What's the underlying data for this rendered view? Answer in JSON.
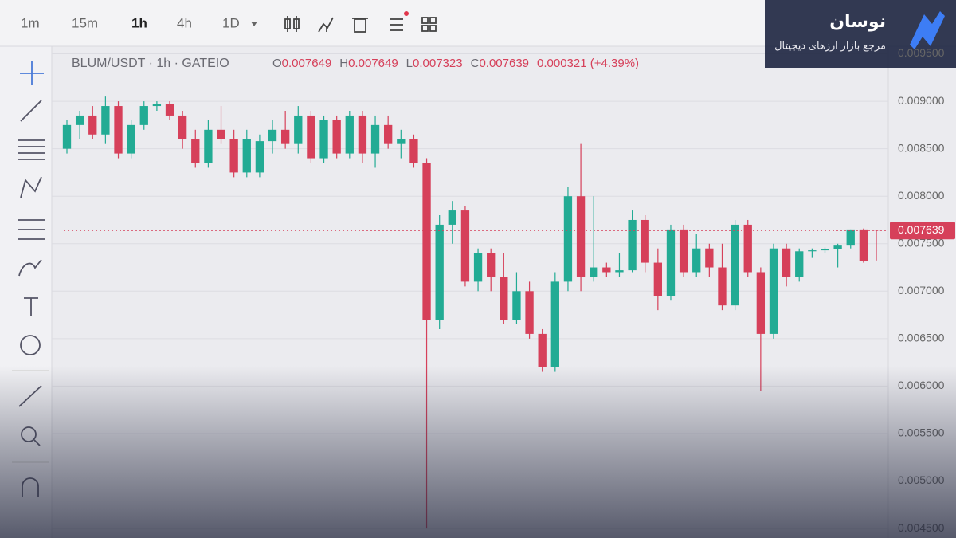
{
  "toolbar": {
    "intervals": [
      "1m",
      "15m",
      "1h",
      "4h",
      "1D"
    ]
  },
  "header": {
    "symbol": "BLUM/USDT · 1h · GATEIO",
    "ohlc": [
      {
        "label": "O",
        "value": "0.007649"
      },
      {
        "label": "H",
        "value": "0.007649"
      },
      {
        "label": "L",
        "value": "0.007323"
      },
      {
        "label": "C",
        "value": "0.007639"
      }
    ],
    "change": "0.000321 (+4.39%)"
  },
  "logo": {
    "name": "نوسان",
    "tagline": "مرجع بازار ارزهای دیجیتال"
  },
  "chart_data": {
    "type": "candlestick",
    "open": [
      0.0085,
      0.00875,
      0.00885,
      0.00865,
      0.00895,
      0.00845,
      0.00875,
      0.00895,
      0.00897,
      0.00885,
      0.0086,
      0.00835,
      0.0087,
      0.0086,
      0.00825,
      0.00825,
      0.00858,
      0.0087,
      0.00855,
      0.00885,
      0.0084,
      0.0088,
      0.00845,
      0.00885,
      0.00845,
      0.00875,
      0.00855,
      0.0086,
      0.00835,
      0.0067,
      0.0077,
      0.00785,
      0.0071,
      0.0074,
      0.00715,
      0.0067,
      0.007,
      0.00655,
      0.0062,
      0.0071,
      0.008,
      0.00715,
      0.00725,
      0.0072,
      0.00722,
      0.00775,
      0.0073,
      0.00695,
      0.00765,
      0.0072,
      0.00745,
      0.00725,
      0.00685,
      0.0077,
      0.0072,
      0.00655,
      0.00745,
      0.00715,
      0.00742,
      0.00743,
      0.00744,
      0.00748,
      0.00765,
      0.007649
    ],
    "high": [
      0.0088,
      0.0089,
      0.00895,
      0.00905,
      0.009,
      0.0088,
      0.009,
      0.009,
      0.009,
      0.0089,
      0.0087,
      0.0088,
      0.00895,
      0.0087,
      0.0087,
      0.00865,
      0.0088,
      0.0089,
      0.00895,
      0.0089,
      0.00885,
      0.00885,
      0.0089,
      0.0089,
      0.00885,
      0.00885,
      0.0087,
      0.00865,
      0.0084,
      0.0078,
      0.00795,
      0.0079,
      0.00745,
      0.00745,
      0.0074,
      0.0072,
      0.0071,
      0.0066,
      0.0072,
      0.0081,
      0.00855,
      0.008,
      0.0073,
      0.0074,
      0.00785,
      0.0078,
      0.00745,
      0.0077,
      0.0077,
      0.0076,
      0.0075,
      0.0075,
      0.00775,
      0.00775,
      0.00725,
      0.0075,
      0.0075,
      0.00745,
      0.00745,
      0.00746,
      0.0075,
      0.00765,
      0.00766,
      0.007649
    ],
    "low": [
      0.00845,
      0.0086,
      0.0086,
      0.00855,
      0.0084,
      0.0084,
      0.0087,
      0.0089,
      0.0088,
      0.0085,
      0.0083,
      0.0083,
      0.00855,
      0.0082,
      0.0082,
      0.0082,
      0.00845,
      0.0085,
      0.00845,
      0.00835,
      0.00835,
      0.0084,
      0.0084,
      0.00835,
      0.0083,
      0.0085,
      0.0084,
      0.0083,
      0.0045,
      0.0066,
      0.0075,
      0.00705,
      0.007,
      0.007,
      0.00665,
      0.00665,
      0.0065,
      0.00615,
      0.00615,
      0.007,
      0.007,
      0.0071,
      0.00715,
      0.00715,
      0.0072,
      0.0072,
      0.0068,
      0.0069,
      0.00715,
      0.00715,
      0.00715,
      0.0068,
      0.0068,
      0.00715,
      0.00595,
      0.0065,
      0.00705,
      0.0071,
      0.00735,
      0.0074,
      0.00725,
      0.00745,
      0.0073,
      0.007323
    ],
    "close": [
      0.00875,
      0.00885,
      0.00865,
      0.00895,
      0.00845,
      0.00875,
      0.00895,
      0.00897,
      0.00885,
      0.0086,
      0.00835,
      0.0087,
      0.0086,
      0.00825,
      0.0086,
      0.00858,
      0.0087,
      0.00855,
      0.00885,
      0.0084,
      0.0088,
      0.00845,
      0.00885,
      0.00845,
      0.00875,
      0.00855,
      0.0086,
      0.00835,
      0.0067,
      0.0077,
      0.00785,
      0.0071,
      0.0074,
      0.00715,
      0.0067,
      0.007,
      0.00655,
      0.0062,
      0.0071,
      0.008,
      0.00715,
      0.00725,
      0.0072,
      0.00722,
      0.00775,
      0.0073,
      0.00695,
      0.00765,
      0.0072,
      0.00745,
      0.00725,
      0.00685,
      0.0077,
      0.0072,
      0.00655,
      0.00745,
      0.00715,
      0.00742,
      0.00743,
      0.00744,
      0.00748,
      0.00765,
      0.00732,
      0.007639
    ],
    "up_color": "#22ab94",
    "down_color": "#d6405a",
    "ylim": [
      0.0044,
      0.00958
    ],
    "yticks": [
      {
        "value": 0.0045,
        "label": "0.004500"
      },
      {
        "value": 0.005,
        "label": "0.005000"
      },
      {
        "value": 0.0055,
        "label": "0.005500"
      },
      {
        "value": 0.006,
        "label": "0.006000"
      },
      {
        "value": 0.0065,
        "label": "0.006500"
      },
      {
        "value": 0.007,
        "label": "0.007000"
      },
      {
        "value": 0.0075,
        "label": "0.007500"
      },
      {
        "value": 0.008,
        "label": "0.008000"
      },
      {
        "value": 0.0085,
        "label": "0.008500"
      },
      {
        "value": 0.009,
        "label": "0.009000"
      },
      {
        "value": 0.0095,
        "label": "0.009500"
      }
    ],
    "last_price": {
      "value": 0.007639,
      "label": "0.007639"
    },
    "grid": true
  }
}
